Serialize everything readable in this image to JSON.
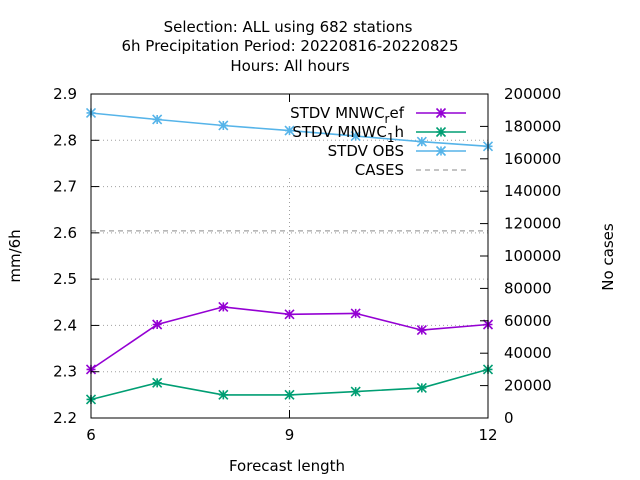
{
  "chart_data": {
    "type": "line",
    "title_lines": [
      "Selection: ALL using   682 stations",
      "6h Precipitation   Period: 20220816-20220825",
      "Hours:  All hours"
    ],
    "xlabel": "Forecast length",
    "ylabel": "mm/6h",
    "y2label": "No cases",
    "x": [
      6,
      7,
      8,
      9,
      10,
      11,
      12
    ],
    "xlim": [
      6,
      12
    ],
    "ylim": [
      2.2,
      2.9
    ],
    "y2lim": [
      0,
      200000
    ],
    "x_ticks": [
      "6",
      "9",
      "12"
    ],
    "y_ticks": [
      "2.2",
      "2.3",
      "2.4",
      "2.5",
      "2.6",
      "2.7",
      "2.8",
      "2.9"
    ],
    "y2_ticks": [
      "0",
      "20000",
      "40000",
      "60000",
      "80000",
      "100000",
      "120000",
      "140000",
      "160000",
      "180000",
      "200000"
    ],
    "grid": true,
    "legend_position": "top-right",
    "series": [
      {
        "name": "STDV MNWC_ref",
        "legend_main": "STDV MNWC",
        "legend_sub": "r",
        "legend_tail": "ef",
        "axis": "y",
        "color": "#9400d3",
        "values": [
          2.305,
          2.402,
          2.44,
          2.424,
          2.426,
          2.39,
          2.402
        ]
      },
      {
        "name": "STDV MNWC_1h",
        "legend_main": "STDV MNWC",
        "legend_sub": "1",
        "legend_tail": "h",
        "axis": "y",
        "color": "#009e73",
        "values": [
          2.24,
          2.276,
          2.25,
          2.25,
          2.257,
          2.265,
          2.305
        ]
      },
      {
        "name": "STDV OBS",
        "axis": "y",
        "color": "#56b4e9",
        "values": [
          2.859,
          2.845,
          2.832,
          2.821,
          2.809,
          2.797,
          2.787
        ]
      },
      {
        "name": "CASES",
        "axis": "y2",
        "color": "#a0a0a0",
        "dashed": true,
        "values": [
          115500,
          115500,
          115500,
          115500,
          115500,
          115500,
          115500
        ]
      }
    ]
  }
}
